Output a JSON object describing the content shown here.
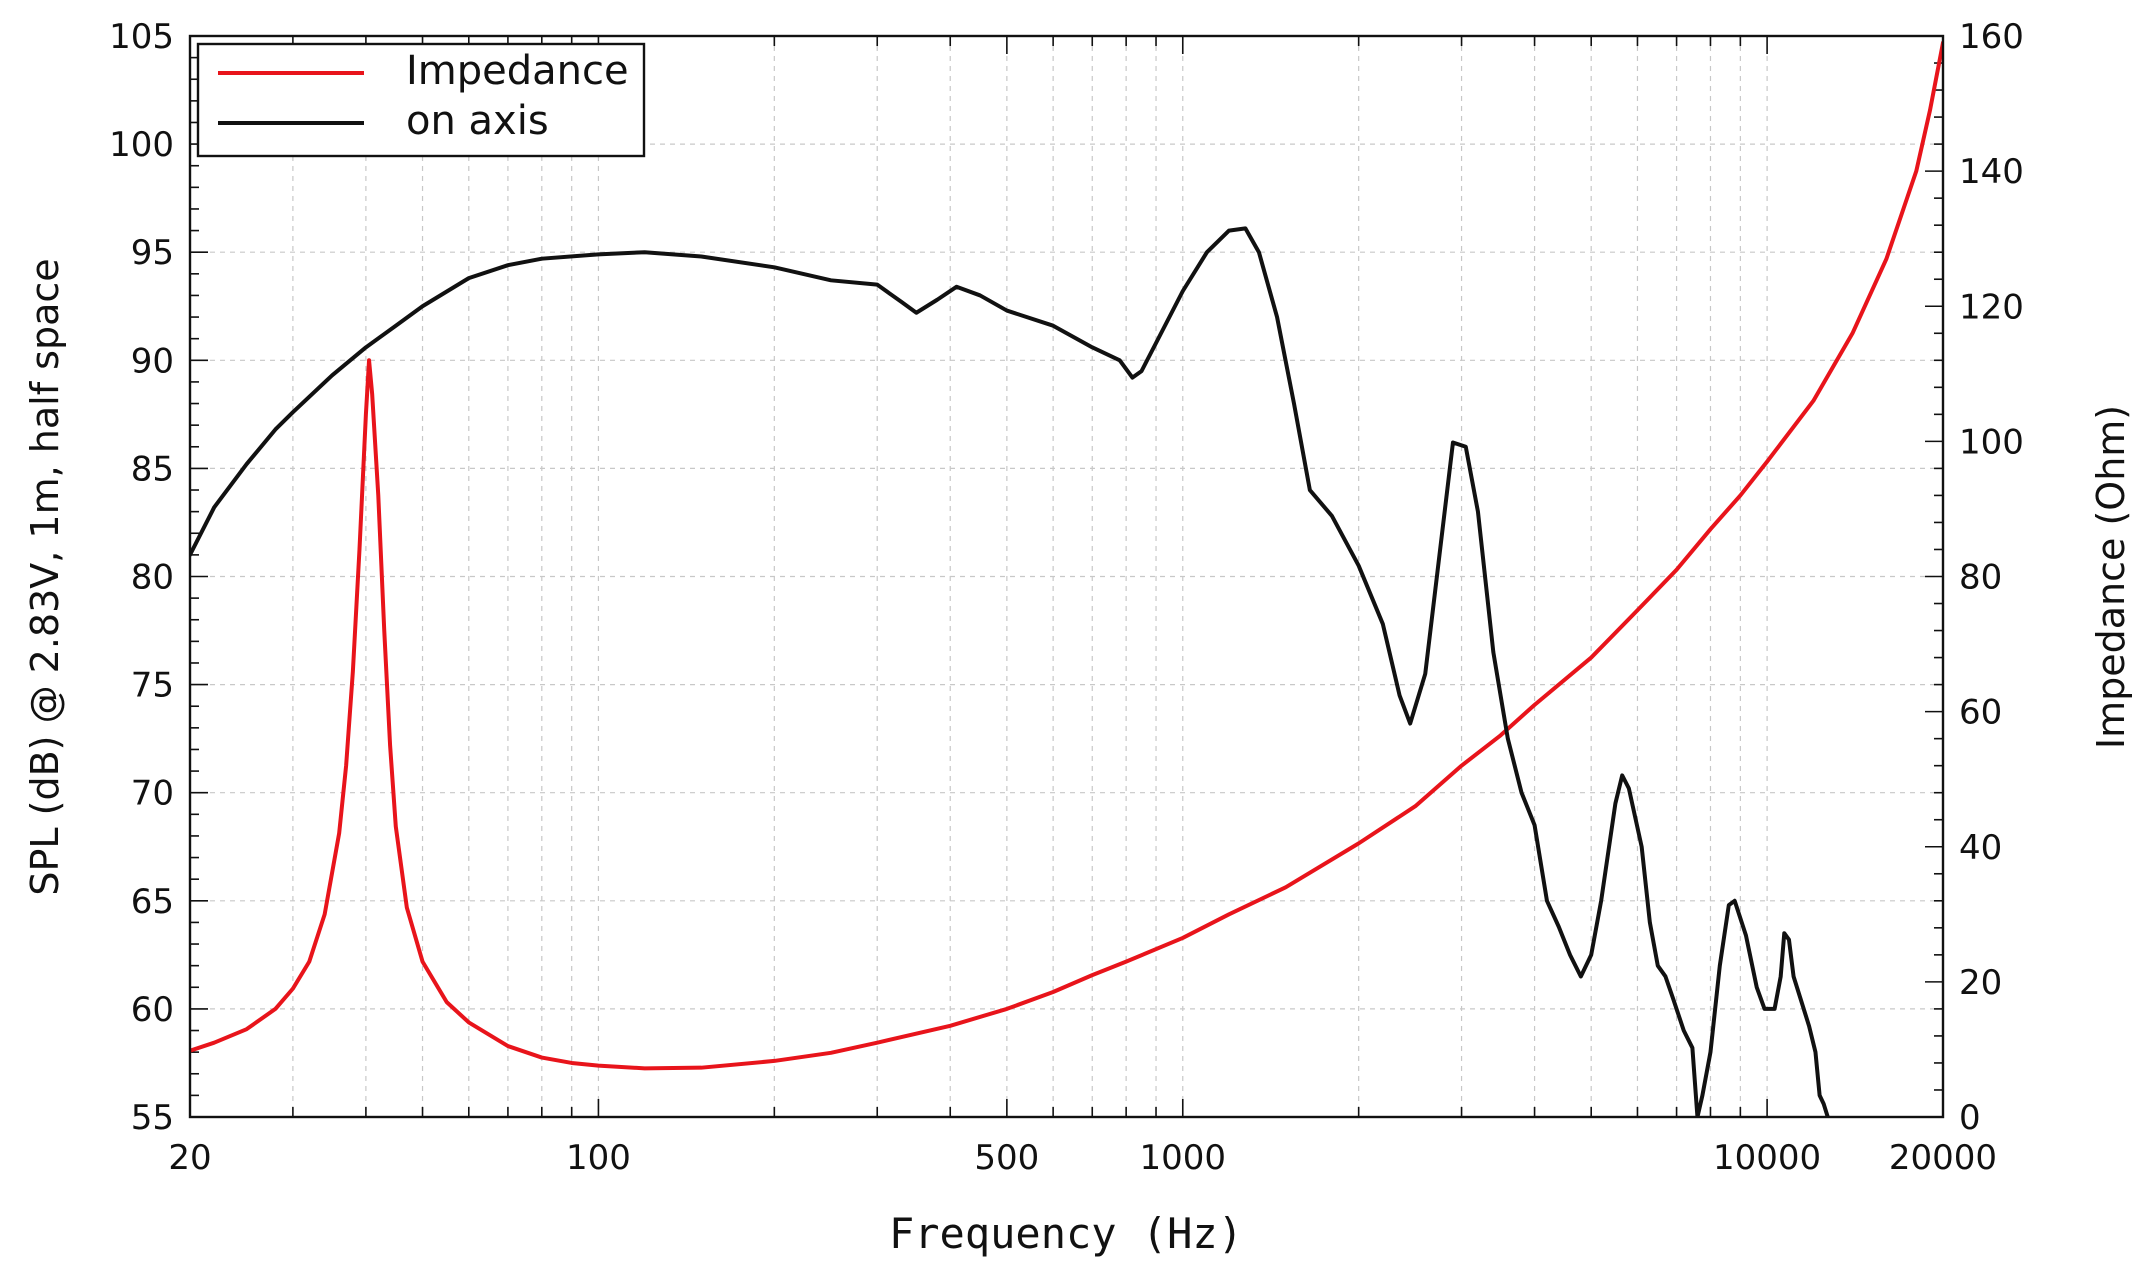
{
  "chart_data": {
    "type": "line",
    "xlabel": "Frequency (Hz)",
    "ylabel_left": "SPL (dB) @ 2.83V, 1m, half space",
    "ylabel_right": "Impedance (Ohm)",
    "x_scale": "log",
    "xlim": [
      20,
      20000
    ],
    "ylim_left": [
      55,
      105
    ],
    "ylim_right": [
      0,
      160
    ],
    "x_ticks": [
      20,
      100,
      500,
      1000,
      10000,
      20000
    ],
    "x_tick_labels": [
      "20",
      "100",
      "500",
      "1000",
      "10000",
      "20000"
    ],
    "y_ticks_left": [
      55,
      60,
      65,
      70,
      75,
      80,
      85,
      90,
      95,
      100,
      105
    ],
    "y_ticks_right": [
      0,
      20,
      40,
      60,
      80,
      100,
      120,
      140,
      160
    ],
    "grid": true,
    "legend_position": "top-left",
    "series": [
      {
        "name": "Impedance",
        "color": "#e8141b",
        "axis": "right",
        "points": [
          [
            20,
            9.8
          ],
          [
            22,
            11
          ],
          [
            25,
            13
          ],
          [
            28,
            16
          ],
          [
            30,
            19
          ],
          [
            32,
            23
          ],
          [
            34,
            30
          ],
          [
            36,
            42
          ],
          [
            37,
            52
          ],
          [
            38,
            66
          ],
          [
            39,
            84
          ],
          [
            40,
            104
          ],
          [
            40.5,
            112
          ],
          [
            41,
            107
          ],
          [
            42,
            92
          ],
          [
            43,
            72
          ],
          [
            44,
            55
          ],
          [
            45,
            43
          ],
          [
            47,
            31
          ],
          [
            50,
            23
          ],
          [
            55,
            17
          ],
          [
            60,
            14
          ],
          [
            70,
            10.5
          ],
          [
            80,
            8.8
          ],
          [
            90,
            8
          ],
          [
            100,
            7.6
          ],
          [
            120,
            7.2
          ],
          [
            150,
            7.3
          ],
          [
            200,
            8.3
          ],
          [
            250,
            9.5
          ],
          [
            300,
            11
          ],
          [
            400,
            13.5
          ],
          [
            500,
            16
          ],
          [
            600,
            18.5
          ],
          [
            700,
            21
          ],
          [
            800,
            23
          ],
          [
            1000,
            26.5
          ],
          [
            1200,
            30
          ],
          [
            1500,
            34
          ],
          [
            2000,
            40.5
          ],
          [
            2500,
            46
          ],
          [
            3000,
            52
          ],
          [
            3500,
            56.5
          ],
          [
            4000,
            61
          ],
          [
            5000,
            68
          ],
          [
            6000,
            75
          ],
          [
            7000,
            81
          ],
          [
            8000,
            87
          ],
          [
            9000,
            92
          ],
          [
            10000,
            97
          ],
          [
            12000,
            106
          ],
          [
            14000,
            116
          ],
          [
            16000,
            127
          ],
          [
            18000,
            140
          ],
          [
            19000,
            149
          ],
          [
            20000,
            159
          ]
        ]
      },
      {
        "name": "on axis",
        "color": "#111111",
        "axis": "left",
        "points": [
          [
            20,
            81
          ],
          [
            22,
            83.2
          ],
          [
            25,
            85.2
          ],
          [
            28,
            86.8
          ],
          [
            30,
            87.6
          ],
          [
            35,
            89.3
          ],
          [
            40,
            90.6
          ],
          [
            45,
            91.6
          ],
          [
            50,
            92.5
          ],
          [
            60,
            93.8
          ],
          [
            70,
            94.4
          ],
          [
            80,
            94.7
          ],
          [
            100,
            94.9
          ],
          [
            120,
            95
          ],
          [
            150,
            94.8
          ],
          [
            200,
            94.3
          ],
          [
            250,
            93.7
          ],
          [
            300,
            93.5
          ],
          [
            330,
            92.7
          ],
          [
            350,
            92.2
          ],
          [
            380,
            92.8
          ],
          [
            410,
            93.4
          ],
          [
            450,
            93
          ],
          [
            500,
            92.3
          ],
          [
            600,
            91.6
          ],
          [
            700,
            90.6
          ],
          [
            780,
            90
          ],
          [
            820,
            89.2
          ],
          [
            850,
            89.5
          ],
          [
            900,
            90.8
          ],
          [
            1000,
            93.2
          ],
          [
            1100,
            95
          ],
          [
            1200,
            96
          ],
          [
            1280,
            96.1
          ],
          [
            1350,
            95
          ],
          [
            1450,
            92
          ],
          [
            1550,
            88
          ],
          [
            1650,
            84
          ],
          [
            1800,
            82.8
          ],
          [
            2000,
            80.5
          ],
          [
            2200,
            77.8
          ],
          [
            2350,
            74.5
          ],
          [
            2450,
            73.2
          ],
          [
            2600,
            75.5
          ],
          [
            2750,
            81
          ],
          [
            2900,
            86.2
          ],
          [
            3050,
            86
          ],
          [
            3200,
            83
          ],
          [
            3400,
            76.5
          ],
          [
            3600,
            72.5
          ],
          [
            3800,
            70
          ],
          [
            4000,
            68.5
          ],
          [
            4200,
            65
          ],
          [
            4400,
            63.8
          ],
          [
            4600,
            62.5
          ],
          [
            4800,
            61.5
          ],
          [
            5000,
            62.5
          ],
          [
            5200,
            65
          ],
          [
            5500,
            69.5
          ],
          [
            5650,
            70.8
          ],
          [
            5800,
            70.2
          ],
          [
            6100,
            67.5
          ],
          [
            6300,
            64
          ],
          [
            6500,
            62
          ],
          [
            6700,
            61.5
          ],
          [
            6900,
            60.5
          ],
          [
            7200,
            59
          ],
          [
            7450,
            58.2
          ],
          [
            7600,
            55
          ],
          [
            7750,
            56
          ],
          [
            8000,
            58
          ],
          [
            8300,
            62
          ],
          [
            8600,
            64.8
          ],
          [
            8800,
            65
          ],
          [
            9200,
            63.4
          ],
          [
            9600,
            61
          ],
          [
            9900,
            60
          ],
          [
            10300,
            60
          ],
          [
            10550,
            61.5
          ],
          [
            10700,
            63.5
          ],
          [
            10900,
            63.2
          ],
          [
            11100,
            61.5
          ],
          [
            11400,
            60.5
          ],
          [
            11800,
            59.2
          ],
          [
            12100,
            58
          ],
          [
            12300,
            56
          ],
          [
            12500,
            55.6
          ],
          [
            12700,
            55
          ]
        ]
      }
    ]
  }
}
